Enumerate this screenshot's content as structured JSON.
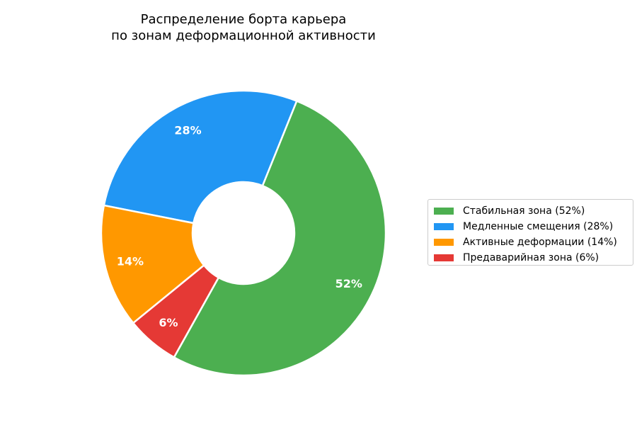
{
  "chart_data": {
    "type": "pie",
    "title_lines": [
      "Распределение борта карьера",
      "по зонам деформационной активности"
    ],
    "slices": [
      {
        "label": "Медленные смещения (28%)",
        "value": 28,
        "pct_label": "28%",
        "color": "#2196F3"
      },
      {
        "label": "Активные деформации (14%)",
        "value": 14,
        "pct_label": "14%",
        "color": "#FF9800"
      },
      {
        "label": "Предаварийная зона (6%)",
        "value": 6,
        "pct_label": "6%",
        "color": "#E53935"
      },
      {
        "label": "Стабильная зона (52%)",
        "value": 52,
        "pct_label": "52%",
        "color": "#4CAF50"
      }
    ],
    "legend": {
      "placement": "right",
      "items": [
        {
          "label": "Стабильная зона (52%)",
          "color": "#4CAF50"
        },
        {
          "label": "Медленные смещения (28%)",
          "color": "#2196F3"
        },
        {
          "label": "Активные деформации (14%)",
          "color": "#FF9800"
        },
        {
          "label": "Предаварийная зона (6%)",
          "color": "#E53935"
        }
      ]
    },
    "donut": true
  }
}
